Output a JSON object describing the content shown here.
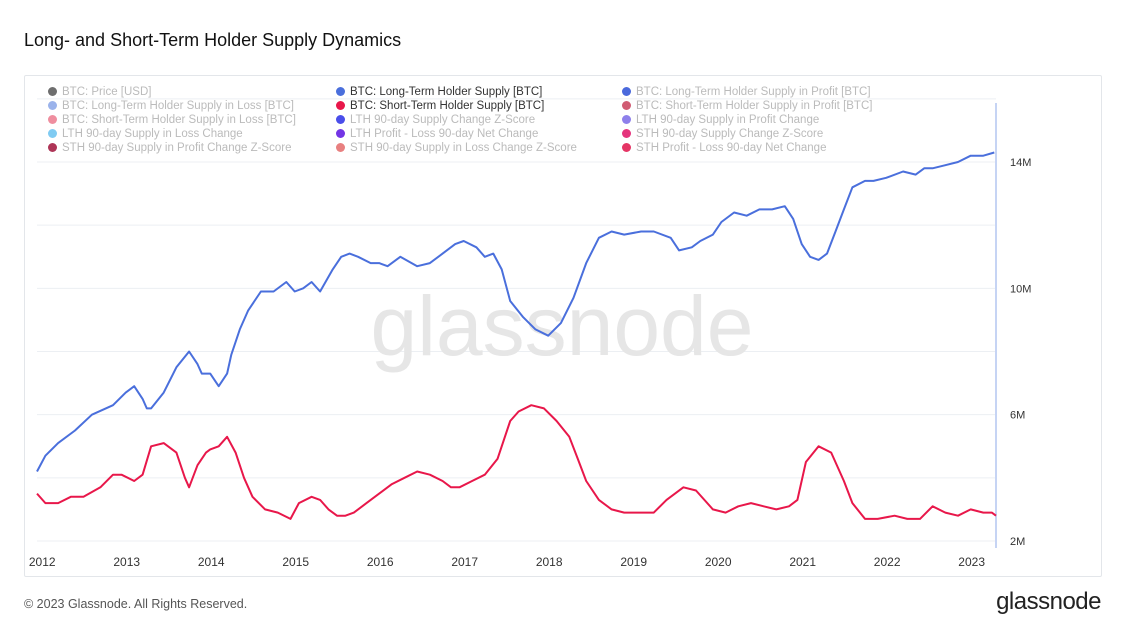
{
  "page": {
    "title": "Long- and Short-Term Holder Supply Dynamics",
    "copyright": "© 2023 Glassnode. All Rights Reserved.",
    "brand": "glassnode",
    "watermark": "glassnode"
  },
  "legend": [
    {
      "label": "BTC: Price [USD]",
      "color": "#555555",
      "active": false
    },
    {
      "label": "BTC: Long-Term Holder Supply [BTC]",
      "color": "#4a6fdc",
      "active": true
    },
    {
      "label": "BTC: Long-Term Holder Supply in Profit [BTC]",
      "color": "#2a4fd6",
      "active": false
    },
    {
      "label": "BTC: Long-Term Holder Supply in Loss [BTC]",
      "color": "#8aa6e8",
      "active": false
    },
    {
      "label": "BTC: Short-Term Holder Supply [BTC]",
      "color": "#e8174a",
      "active": true
    },
    {
      "label": "BTC: Short-Term Holder Supply in Profit [BTC]",
      "color": "#c9405a",
      "active": false
    },
    {
      "label": "BTC: Short-Term Holder Supply in Loss [BTC]",
      "color": "#ec7a8e",
      "active": false
    },
    {
      "label": "LTH 90-day Supply Change Z-Score",
      "color": "#2a2fe6",
      "active": false
    },
    {
      "label": "LTH 90-day Supply in Profit Change",
      "color": "#7a6ae8",
      "active": false
    },
    {
      "label": "LTH 90-day Supply in Loss Change",
      "color": "#6ac2f0",
      "active": false
    },
    {
      "label": "LTH Profit - Loss 90-day Net Change",
      "color": "#5a12e0",
      "active": false
    },
    {
      "label": "STH 90-day Supply Change Z-Score",
      "color": "#e01266",
      "active": false
    },
    {
      "label": "STH 90-day Supply in Profit Change Z-Score",
      "color": "#a0123a",
      "active": false
    },
    {
      "label": "STH 90-day Supply in Loss Change Z-Score",
      "color": "#e46a6a",
      "active": false
    },
    {
      "label": "STH Profit - Loss 90-day Net Change",
      "color": "#e0124a",
      "active": false
    }
  ],
  "chart_data": {
    "type": "line",
    "title": "Long- and Short-Term Holder Supply Dynamics",
    "xlabel": "",
    "ylabel": "",
    "x_ticks": [
      "2012",
      "2013",
      "2014",
      "2015",
      "2016",
      "2017",
      "2018",
      "2019",
      "2020",
      "2021",
      "2022",
      "2023"
    ],
    "y_ticks": [
      "2M",
      "6M",
      "10M",
      "14M"
    ],
    "ylim": [
      2000000,
      15500000
    ],
    "xlim": [
      2011.95,
      2023.3
    ],
    "grid": true,
    "series": [
      {
        "name": "BTC: Long-Term Holder Supply [BTC]",
        "color": "#4a6fdc",
        "x": [
          2011.95,
          2012.05,
          2012.2,
          2012.4,
          2012.6,
          2012.85,
          2013.0,
          2013.1,
          2013.2,
          2013.25,
          2013.3,
          2013.45,
          2013.6,
          2013.75,
          2013.85,
          2013.9,
          2014.0,
          2014.1,
          2014.2,
          2014.25,
          2014.35,
          2014.45,
          2014.6,
          2014.75,
          2014.9,
          2015.0,
          2015.1,
          2015.2,
          2015.3,
          2015.45,
          2015.55,
          2015.65,
          2015.75,
          2015.9,
          2016.0,
          2016.1,
          2016.25,
          2016.45,
          2016.6,
          2016.75,
          2016.9,
          2017.0,
          2017.15,
          2017.25,
          2017.35,
          2017.45,
          2017.55,
          2017.7,
          2017.85,
          2018.0,
          2018.15,
          2018.3,
          2018.45,
          2018.6,
          2018.75,
          2018.9,
          2019.1,
          2019.25,
          2019.45,
          2019.55,
          2019.7,
          2019.8,
          2019.95,
          2020.05,
          2020.2,
          2020.35,
          2020.5,
          2020.65,
          2020.8,
          2020.9,
          2021.0,
          2021.1,
          2021.2,
          2021.3,
          2021.4,
          2021.5,
          2021.6,
          2021.75,
          2021.85,
          2022.0,
          2022.2,
          2022.35,
          2022.45,
          2022.55,
          2022.7,
          2022.85,
          2023.0,
          2023.15,
          2023.28
        ],
        "values": [
          4200000,
          4700000,
          5100000,
          5500000,
          6000000,
          6300000,
          6700000,
          6900000,
          6500000,
          6200000,
          6200000,
          6700000,
          7500000,
          8000000,
          7600000,
          7300000,
          7300000,
          6900000,
          7300000,
          7900000,
          8700000,
          9300000,
          9900000,
          9900000,
          10200000,
          9900000,
          10000000,
          10200000,
          9900000,
          10600000,
          11000000,
          11100000,
          11000000,
          10800000,
          10800000,
          10700000,
          11000000,
          10700000,
          10800000,
          11100000,
          11400000,
          11500000,
          11300000,
          11000000,
          11100000,
          10600000,
          9600000,
          9100000,
          8700000,
          8500000,
          8900000,
          9700000,
          10800000,
          11600000,
          11800000,
          11700000,
          11800000,
          11800000,
          11600000,
          11200000,
          11300000,
          11500000,
          11700000,
          12100000,
          12400000,
          12300000,
          12500000,
          12500000,
          12600000,
          12200000,
          11400000,
          11000000,
          10900000,
          11100000,
          11800000,
          12500000,
          13200000,
          13400000,
          13400000,
          13500000,
          13700000,
          13600000,
          13800000,
          13800000,
          13900000,
          14000000,
          14200000,
          14200000,
          14300000
        ]
      },
      {
        "name": "BTC: Short-Term Holder Supply [BTC]",
        "color": "#e8174a",
        "x": [
          2011.95,
          2012.05,
          2012.2,
          2012.35,
          2012.5,
          2012.7,
          2012.85,
          2012.95,
          2013.1,
          2013.2,
          2013.3,
          2013.45,
          2013.6,
          2013.7,
          2013.75,
          2013.85,
          2013.95,
          2014.0,
          2014.1,
          2014.2,
          2014.3,
          2014.4,
          2014.5,
          2014.65,
          2014.8,
          2014.95,
          2015.05,
          2015.2,
          2015.3,
          2015.4,
          2015.5,
          2015.6,
          2015.7,
          2015.85,
          2016.0,
          2016.15,
          2016.3,
          2016.45,
          2016.6,
          2016.75,
          2016.85,
          2016.95,
          2017.1,
          2017.25,
          2017.4,
          2017.55,
          2017.65,
          2017.8,
          2017.95,
          2018.1,
          2018.25,
          2018.35,
          2018.45,
          2018.6,
          2018.75,
          2018.9,
          2019.1,
          2019.25,
          2019.4,
          2019.6,
          2019.75,
          2019.95,
          2020.1,
          2020.25,
          2020.4,
          2020.55,
          2020.7,
          2020.85,
          2020.95,
          2021.05,
          2021.2,
          2021.35,
          2021.5,
          2021.6,
          2021.75,
          2021.9,
          2022.1,
          2022.25,
          2022.4,
          2022.55,
          2022.7,
          2022.85,
          2023.0,
          2023.15,
          2023.25,
          2023.3
        ],
        "values": [
          3500000,
          3200000,
          3200000,
          3400000,
          3400000,
          3700000,
          4100000,
          4100000,
          3900000,
          4100000,
          5000000,
          5100000,
          4800000,
          4000000,
          3700000,
          4400000,
          4800000,
          4900000,
          5000000,
          5300000,
          4800000,
          4000000,
          3400000,
          3000000,
          2900000,
          2700000,
          3200000,
          3400000,
          3300000,
          3000000,
          2800000,
          2800000,
          2900000,
          3200000,
          3500000,
          3800000,
          4000000,
          4200000,
          4100000,
          3900000,
          3700000,
          3700000,
          3900000,
          4100000,
          4600000,
          5800000,
          6100000,
          6300000,
          6200000,
          5800000,
          5300000,
          4600000,
          3900000,
          3300000,
          3000000,
          2900000,
          2900000,
          2900000,
          3300000,
          3700000,
          3600000,
          3000000,
          2900000,
          3100000,
          3200000,
          3100000,
          3000000,
          3100000,
          3300000,
          4500000,
          5000000,
          4800000,
          3900000,
          3200000,
          2700000,
          2700000,
          2800000,
          2700000,
          2700000,
          3100000,
          2900000,
          2800000,
          3000000,
          2900000,
          2900000,
          2800000
        ]
      }
    ]
  }
}
